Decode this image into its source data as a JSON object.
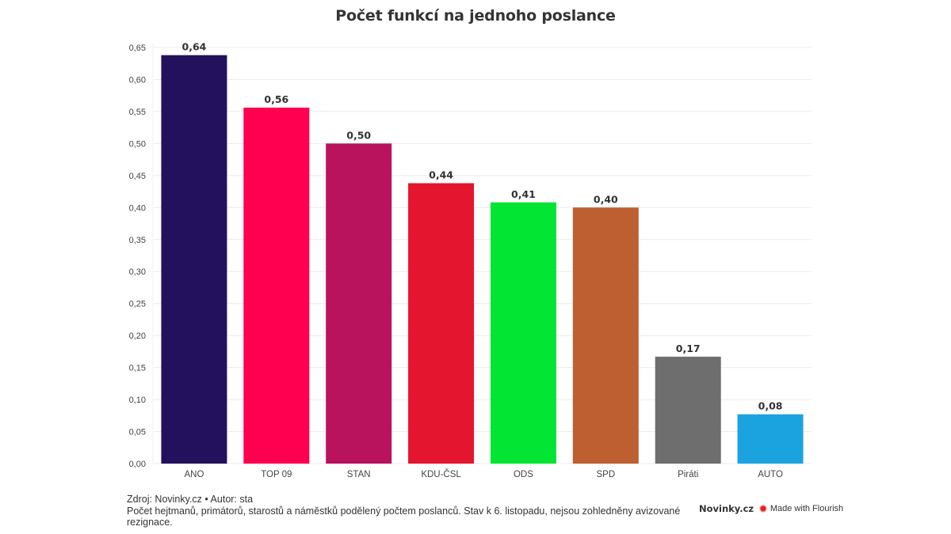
{
  "chart_data": {
    "type": "bar",
    "title": "Počet funkcí na jednoho poslance",
    "xlabel": "",
    "ylabel": "",
    "ylim": [
      0,
      0.65
    ],
    "grid": true,
    "categories": [
      "ANO",
      "TOP 09",
      "STAN",
      "KDU-ČSL",
      "ODS",
      "SPD",
      "Piráti",
      "AUTO"
    ],
    "values": [
      0.638,
      0.556,
      0.5,
      0.438,
      0.408,
      0.4,
      0.167,
      0.077
    ],
    "value_labels": [
      "0,64",
      "0,56",
      "0,50",
      "0,44",
      "0,41",
      "0,40",
      "0,17",
      "0,08"
    ],
    "colors": [
      "#24115e",
      "#ff0050",
      "#b8135c",
      "#e4152e",
      "#02e532",
      "#bd5f30",
      "#6e6e6e",
      "#1ba3e0"
    ],
    "y_ticks": [
      0,
      0.05,
      0.1,
      0.15,
      0.2,
      0.25,
      0.3,
      0.35,
      0.4,
      0.45,
      0.5,
      0.55,
      0.6,
      0.65
    ],
    "y_tick_labels": [
      "0,00",
      "0,05",
      "0,10",
      "0,15",
      "0,20",
      "0,25",
      "0,30",
      "0,35",
      "0,40",
      "0,45",
      "0,50",
      "0,55",
      "0,60",
      "0,65"
    ]
  },
  "footer": {
    "source": "Zdroj: Novinky.cz • Autor: sta",
    "note": "Počet hejtmanů, primátorů, starostů a náměstků podělený počtem poslanců. Stav k 6. listopadu, nejsou zohledněny avizované rezignace."
  },
  "branding": {
    "publisher": "Novinky.cz",
    "made_with": "Made with Flourish",
    "flourish_icon": "flourish-burst-icon",
    "flourish_color": "#e52420"
  }
}
